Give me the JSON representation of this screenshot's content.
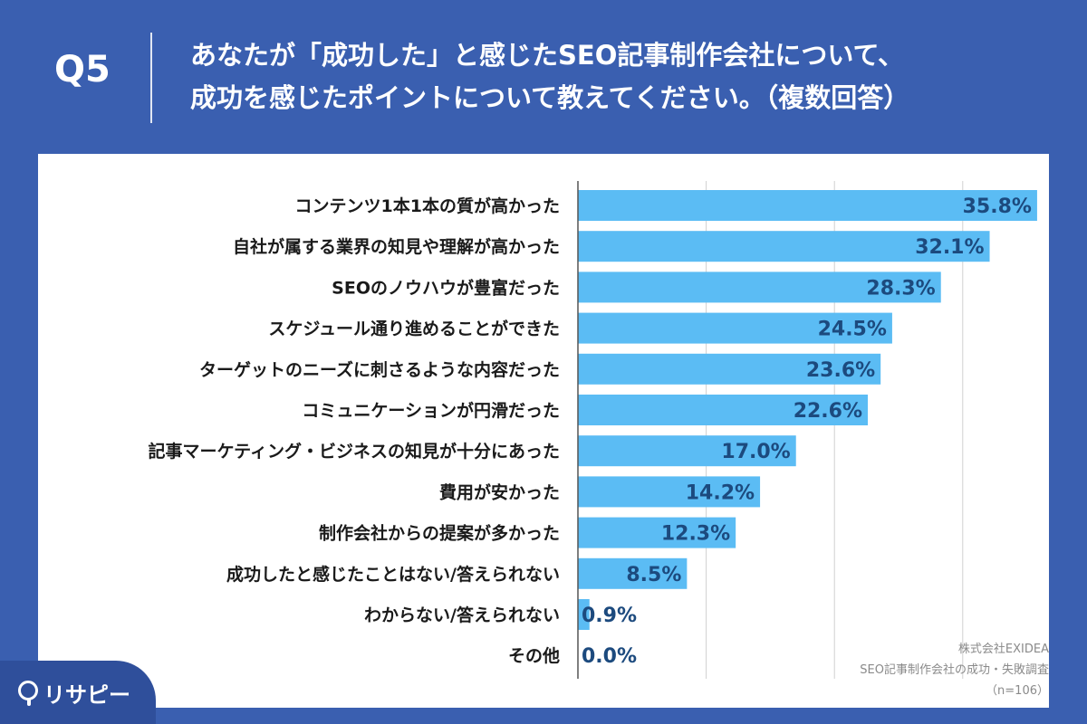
{
  "header": {
    "q_label": "Q5",
    "title_line1": "あなたが「成功した」と感じたSEO記事制作会社について、",
    "title_line2": "成功を感じたポイントについて教えてください。（複数回答）"
  },
  "source": {
    "company": "株式会社EXIDEA",
    "survey": "SEO記事制作会社の成功・失敗調査",
    "n": "（n=106）"
  },
  "logo": {
    "text": "リサピー"
  },
  "colors": {
    "bar": "#5bbcf4",
    "background": "#3a5fb0",
    "grid": "#d0d0d0"
  },
  "chart_data": {
    "type": "bar",
    "orientation": "horizontal",
    "categories": [
      "コンテンツ1本1本の質が高かった",
      "自社が属する業界の知見や理解が高かった",
      "SEOのノウハウが豊富だった",
      "スケジュール通り進めることができた",
      "ターゲットのニーズに刺さるような内容だった",
      "コミュニケーションが円滑だった",
      "記事マーケティング・ビジネスの知見が十分にあった",
      "費用が安かった",
      "制作会社からの提案が多かった",
      "成功したと感じたことはない/答えられない",
      "わからない/答えられない",
      "その他"
    ],
    "values": [
      35.8,
      32.1,
      28.3,
      24.5,
      23.6,
      22.6,
      17.0,
      14.2,
      12.3,
      8.5,
      0.9,
      0.0
    ],
    "value_labels": [
      "35.8%",
      "32.1%",
      "28.3%",
      "24.5%",
      "23.6%",
      "22.6%",
      "17.0%",
      "14.2%",
      "12.3%",
      "8.5%",
      "0.9%",
      "0.0%"
    ],
    "xlim": [
      0,
      40
    ],
    "grid": true
  }
}
